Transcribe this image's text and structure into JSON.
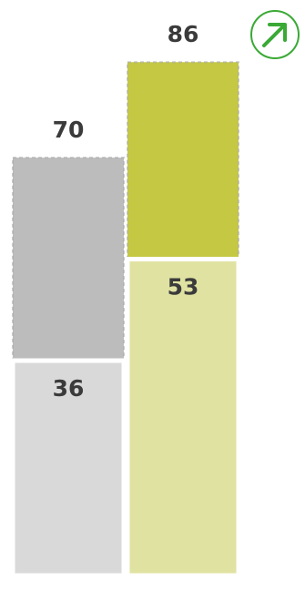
{
  "chart_data": {
    "type": "bar",
    "mode": "overlay",
    "categories": [
      null,
      null
    ],
    "series": [
      {
        "colors": [
          "#bcbcbc",
          "#c5c843"
        ],
        "values": [
          70,
          86
        ]
      },
      {
        "colors": [
          "#d9d9d9",
          "#e0e2a2"
        ],
        "values": [
          36,
          53
        ]
      }
    ],
    "ylim": [
      0,
      90
    ]
  }
}
